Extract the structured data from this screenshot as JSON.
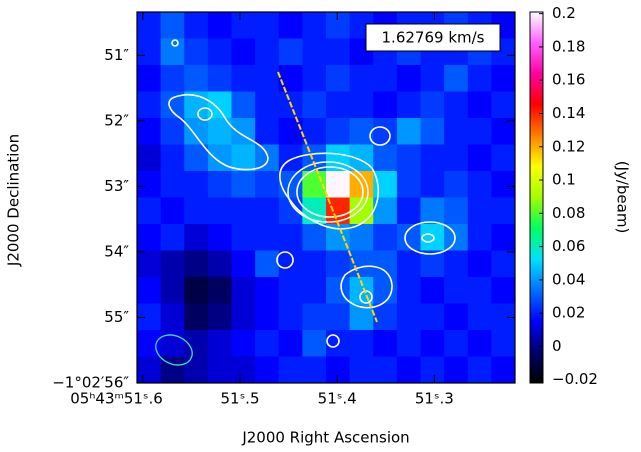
{
  "chart_data": {
    "type": "heatmap",
    "title": "1.62769 km/s",
    "x_label": "J2000 Right Ascension",
    "y_label": "J2000 Declination",
    "colorbar_label": "(Jy/beam)",
    "xlim": [
      51.606,
      51.217
    ],
    "xticks": [
      {
        "value": 51.6,
        "label": "05ʰ43ᵐ51ˢ.6"
      },
      {
        "value": 51.5,
        "label": "51ˢ.5"
      },
      {
        "value": 51.4,
        "label": "51ˢ.4"
      },
      {
        "value": 51.3,
        "label": "51ˢ.3"
      }
    ],
    "ylim": [
      56,
      50.34
    ],
    "yticks": [
      {
        "value": 51,
        "label": "51″"
      },
      {
        "value": 52,
        "label": "52″"
      },
      {
        "value": 53,
        "label": "53″"
      },
      {
        "value": 54,
        "label": "54″"
      },
      {
        "value": 55,
        "label": "55″"
      },
      {
        "value": 56,
        "label": "−1°02′56″"
      }
    ],
    "clim": [
      -0.022,
      0.201
    ],
    "cticks": [
      0.2,
      0.18,
      0.16,
      0.14,
      0.12,
      0.1,
      0.08,
      0.06,
      0.04,
      0.02,
      0,
      {
        "value": -0.02,
        "label": "−0.02"
      }
    ],
    "colormap": [
      "#000000",
      "#00006a",
      "#0000ff",
      "#0070ff",
      "#00e0ff",
      "#00ff60",
      "#a0ff00",
      "#ffff00",
      "#ff8000",
      "#ff0000",
      "#ff00a0",
      "#ff60ff",
      "#ffffff"
    ],
    "z": [
      [
        0.02,
        0.03,
        0.02,
        0.015,
        0.02,
        0.02,
        0.015,
        0.02,
        0.025,
        0.02,
        0.015,
        0.02,
        0.02,
        0.025,
        0.02,
        0.015
      ],
      [
        0.02,
        0.035,
        0.025,
        0.02,
        0.015,
        0.02,
        0.025,
        0.02,
        0.02,
        0.015,
        0.02,
        0.025,
        0.02,
        0.02,
        0.025,
        0.02
      ],
      [
        0.015,
        0.025,
        0.03,
        0.025,
        0.02,
        0.02,
        0.015,
        0.02,
        0.025,
        0.02,
        0.02,
        0.015,
        0.02,
        0.03,
        0.02,
        0.015
      ],
      [
        0.02,
        0.03,
        0.045,
        0.05,
        0.03,
        0.02,
        0.02,
        0.025,
        0.02,
        0.02,
        0.015,
        0.02,
        0.025,
        0.02,
        0.015,
        0.02
      ],
      [
        0.015,
        0.025,
        0.04,
        0.045,
        0.04,
        0.02,
        0.015,
        0.02,
        0.025,
        0.03,
        0.025,
        0.04,
        0.03,
        0.02,
        0.02,
        0.015
      ],
      [
        0.01,
        0.02,
        0.03,
        0.04,
        0.045,
        0.035,
        0.02,
        0.03,
        0.05,
        0.045,
        0.03,
        0.025,
        0.02,
        0.02,
        0.015,
        0.02
      ],
      [
        0.015,
        0.02,
        0.02,
        0.025,
        0.03,
        0.025,
        0.03,
        0.08,
        0.2,
        0.12,
        0.05,
        0.025,
        0.02,
        0.025,
        0.02,
        0.015
      ],
      [
        0.02,
        0.015,
        0.02,
        0.02,
        0.02,
        0.02,
        0.025,
        0.06,
        0.14,
        0.09,
        0.04,
        0.02,
        0.035,
        0.03,
        0.02,
        0.02
      ],
      [
        0.015,
        0.02,
        0.01,
        0.015,
        0.02,
        0.02,
        0.02,
        0.03,
        0.04,
        0.035,
        0.025,
        0.03,
        0.05,
        0.035,
        0.02,
        0.015
      ],
      [
        0.01,
        0.005,
        0,
        0.005,
        0.015,
        0.03,
        0.02,
        0.02,
        0.025,
        0.03,
        0.03,
        0.02,
        0.025,
        0.02,
        0.015,
        0.02
      ],
      [
        0.015,
        0.005,
        -0.01,
        -0.005,
        0.01,
        0.015,
        0.02,
        0.02,
        0.03,
        0.045,
        0.03,
        0.02,
        0.015,
        0.02,
        0.02,
        0.015
      ],
      [
        0.02,
        0.01,
        -0.005,
        0,
        0.01,
        0.015,
        0.02,
        0.025,
        0.025,
        0.04,
        0.025,
        0.02,
        0.02,
        0.015,
        0.02,
        0.02
      ],
      [
        0.015,
        0.01,
        0.005,
        0.01,
        0.015,
        0.02,
        0.015,
        0.03,
        0.02,
        0.02,
        0.015,
        0.02,
        0.015,
        0.02,
        0.015,
        0.02
      ],
      [
        0.01,
        0,
        0.005,
        0.01,
        0.01,
        0.015,
        0.02,
        0.02,
        0.015,
        0.02,
        0.02,
        0.015,
        0.02,
        0.015,
        0.02,
        0.015
      ]
    ]
  }
}
